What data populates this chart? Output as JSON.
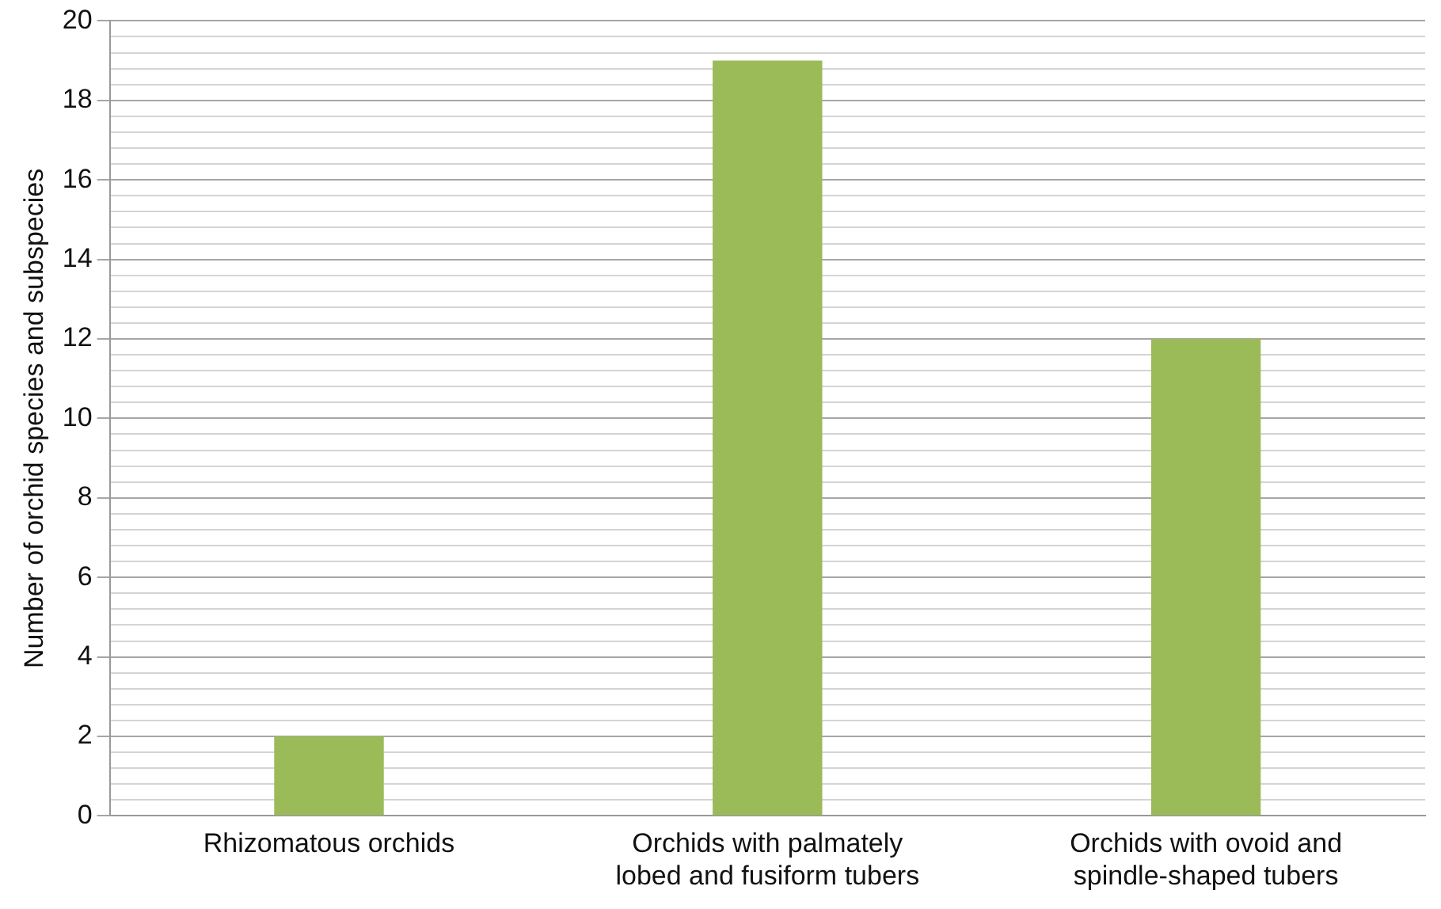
{
  "chart_data": {
    "type": "bar",
    "ylabel": "Number of orchid species and subspecies",
    "categories": [
      "Rhizomatous orchids",
      "Orchids with palmately lobed and fusiform tubers",
      "Orchids with ovoid and spindle-shaped tubers"
    ],
    "values": [
      2,
      19,
      12
    ],
    "color": "#9bbb59",
    "ylim": [
      0,
      20
    ],
    "yticks": [
      0,
      {
        "value": 0.4,
        "label": null
      },
      {
        "value": 0.8,
        "label": null
      },
      {
        "value": 1.2,
        "label": null
      },
      {
        "value": 1.6,
        "label": null
      },
      2,
      {
        "value": 2.4,
        "label": null
      },
      {
        "value": 2.8,
        "label": null
      },
      {
        "value": 3.2,
        "label": null
      },
      {
        "value": 3.6,
        "label": null
      },
      4,
      {
        "value": 4.4,
        "label": null
      },
      {
        "value": 4.8,
        "label": null
      },
      {
        "value": 5.2,
        "label": null
      },
      {
        "value": 5.6,
        "label": null
      },
      6,
      {
        "value": 6.4,
        "label": null
      },
      {
        "value": 6.8,
        "label": null
      },
      {
        "value": 7.2,
        "label": null
      },
      {
        "value": 7.6,
        "label": null
      },
      8,
      {
        "value": 8.4,
        "label": null
      },
      {
        "value": 8.8,
        "label": null
      },
      {
        "value": 9.2,
        "label": null
      },
      {
        "value": 9.6,
        "label": null
      },
      10,
      {
        "value": 10.4,
        "label": null
      },
      {
        "value": 10.8,
        "label": null
      },
      {
        "value": 11.2,
        "label": null
      },
      {
        "value": 11.6,
        "label": null
      },
      12,
      {
        "value": 12.4,
        "label": null
      },
      {
        "value": 12.8,
        "label": null
      },
      {
        "value": 13.2,
        "label": null
      },
      {
        "value": 13.6,
        "label": null
      },
      14,
      {
        "value": 14.4,
        "label": null
      },
      {
        "value": 14.8,
        "label": null
      },
      {
        "value": 15.2,
        "label": null
      },
      {
        "value": 15.6,
        "label": null
      },
      16,
      {
        "value": 16.4,
        "label": null
      },
      {
        "value": 16.8,
        "label": null
      },
      {
        "value": 17.2,
        "label": null
      },
      {
        "value": 17.6,
        "label": null
      },
      18,
      {
        "value": 18.4,
        "label": null
      },
      {
        "value": 18.8,
        "label": null
      },
      {
        "value": 19.2,
        "label": null
      },
      {
        "value": 19.6,
        "label": null
      },
      20
    ],
    "grid": true,
    "legend": false
  }
}
